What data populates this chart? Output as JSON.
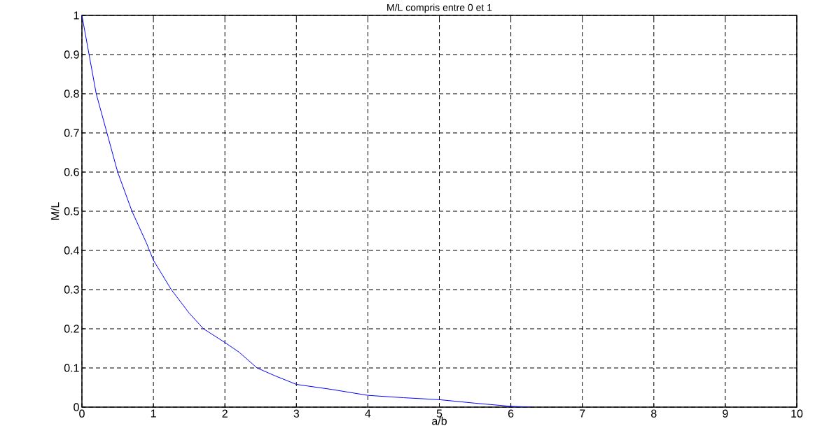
{
  "chart_data": {
    "type": "line",
    "title": "M/L compris entre 0 et 1",
    "xlabel": "a/b",
    "ylabel": "M/L",
    "x": [
      0,
      0.05,
      0.2,
      0.35,
      0.5,
      0.7,
      0.9,
      1,
      1.25,
      1.5,
      1.7,
      2,
      2.2,
      2.45,
      2.7,
      3,
      3.5,
      4,
      4.5,
      5,
      5.5,
      6,
      6.3
    ],
    "series": [
      {
        "color": "#0000ff",
        "values": [
          1,
          0.95,
          0.8,
          0.7,
          0.6,
          0.5,
          0.42,
          0.375,
          0.3,
          0.24,
          0.2,
          0.165,
          0.14,
          0.1,
          0.08,
          0.058,
          0.045,
          0.03,
          0.024,
          0.019,
          0.01,
          0.002,
          0
        ]
      }
    ],
    "xlim": [
      0,
      10
    ],
    "ylim": [
      0,
      1
    ],
    "xticks": [
      0,
      1,
      2,
      3,
      4,
      5,
      6,
      7,
      8,
      9,
      10
    ],
    "yticks": [
      0,
      0.1,
      0.2,
      0.3,
      0.4,
      0.5,
      0.6,
      0.7,
      0.8,
      0.9,
      1
    ],
    "grid": true,
    "line_style": "solid",
    "marker": "none"
  }
}
